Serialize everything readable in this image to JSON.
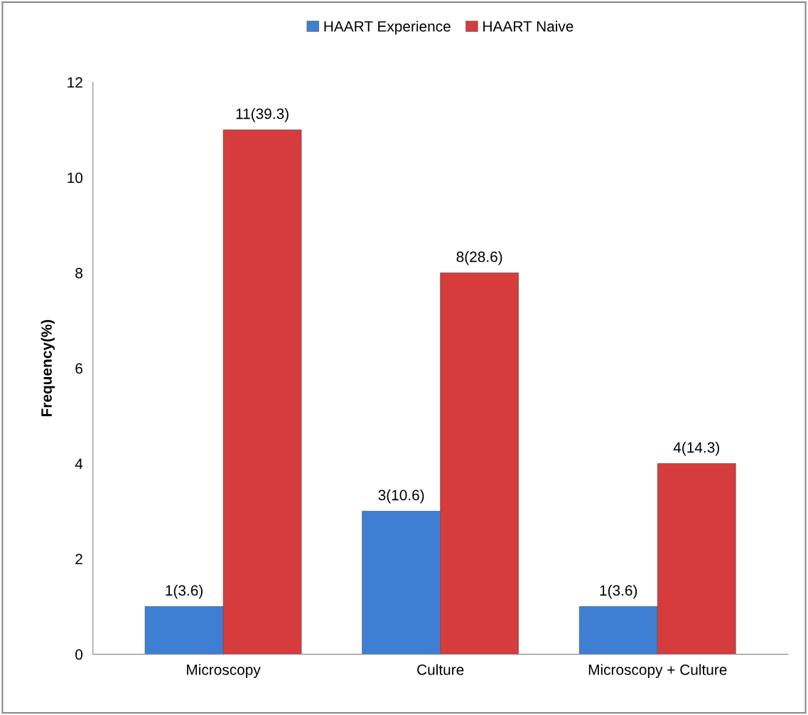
{
  "chart_data": {
    "type": "bar",
    "ylabel": "Frequency(%)",
    "categories": [
      "Microscopy",
      "Culture",
      "Microscopy + Culture"
    ],
    "series": [
      {
        "name": "HAART Experience",
        "color": "#3f7fd3",
        "values": [
          1,
          3,
          1
        ],
        "value_labels": [
          "1(3.6)",
          "3(10.6)",
          "1(3.6)"
        ]
      },
      {
        "name": "HAART Naive",
        "color": "#d63c3c",
        "values": [
          11,
          8,
          4
        ],
        "value_labels": [
          "11(39.3)",
          "8(28.6)",
          "4(14.3)"
        ]
      }
    ],
    "ylim": [
      0,
      12
    ],
    "yticks": [
      0,
      2,
      4,
      6,
      8,
      10,
      12
    ],
    "grid": false,
    "legend": "top"
  }
}
